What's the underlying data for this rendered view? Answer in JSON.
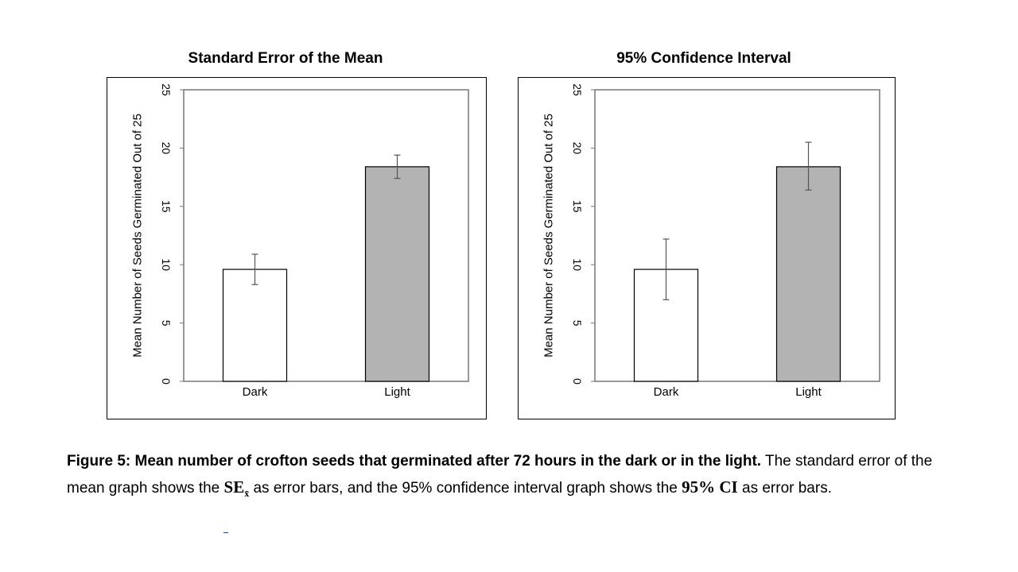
{
  "chart_data": [
    {
      "type": "bar",
      "title": "Standard Error of the Mean",
      "categories": [
        "Dark",
        "Light"
      ],
      "values": [
        9.6,
        18.4
      ],
      "error_low": [
        8.3,
        17.4
      ],
      "error_high": [
        10.9,
        19.4
      ],
      "bar_colors": [
        "#ffffff",
        "#b3b3b3"
      ],
      "ylabel": "Mean Number of Seeds Germinated Out of 25",
      "ylim": [
        0,
        25
      ],
      "yticks": [
        0,
        5,
        10,
        15,
        20,
        25
      ],
      "grid": false
    },
    {
      "type": "bar",
      "title": "95% Confidence Interval",
      "categories": [
        "Dark",
        "Light"
      ],
      "values": [
        9.6,
        18.4
      ],
      "error_low": [
        7.0,
        16.4
      ],
      "error_high": [
        12.2,
        20.5
      ],
      "bar_colors": [
        "#ffffff",
        "#b3b3b3"
      ],
      "ylabel": "Mean Number of Seeds Germinated Out of 25",
      "ylim": [
        0,
        25
      ],
      "yticks": [
        0,
        5,
        10,
        15,
        20,
        25
      ],
      "grid": false
    }
  ],
  "caption": {
    "bold_lead": "Figure 5: Mean number of crofton seeds that germinated after 72 hours in the dark or in the light.",
    "text_1": " The standard error of the mean graph shows the ",
    "se_symbol": "SE",
    "se_subscript": "x̄",
    "text_2": " as error bars, and the 95% confidence interval graph shows the ",
    "ci_symbol": "95% CI",
    "text_3": " as error bars."
  }
}
